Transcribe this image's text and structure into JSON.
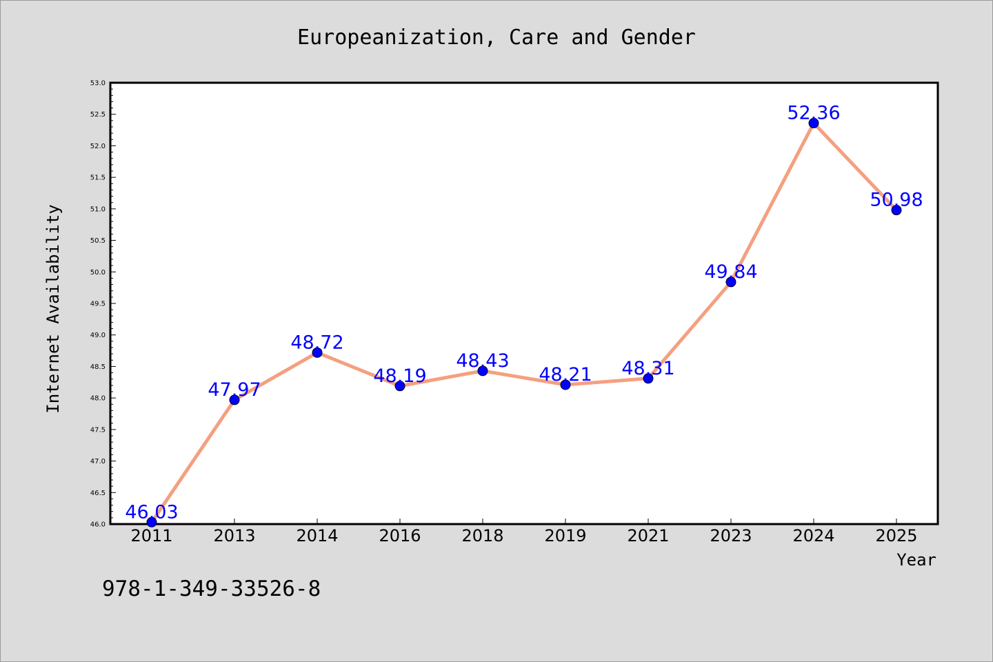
{
  "title": "Europeanization, Care and Gender",
  "footer": "978-1-349-33526-8",
  "colors": {
    "background": "#dcdcdc",
    "plot_background": "#ffffff",
    "line": "#f4a080",
    "marker": "#0000ff",
    "data_label": "#0000ff"
  },
  "chart_data": {
    "type": "line",
    "title": "Europeanization, Care and Gender",
    "xlabel": "Year",
    "ylabel": "Internet Availability",
    "categories": [
      "2011",
      "2013",
      "2014",
      "2016",
      "2018",
      "2019",
      "2021",
      "2023",
      "2024",
      "2025"
    ],
    "series": [
      {
        "values": [
          46.03,
          47.97,
          48.72,
          48.19,
          48.43,
          48.21,
          48.31,
          49.84,
          52.36,
          50.98
        ]
      }
    ],
    "data_labels": [
      "46.03",
      "47.97",
      "48.72",
      "48.19",
      "48.43",
      "48.21",
      "48.31",
      "49.84",
      "52.36",
      "50.98"
    ],
    "ylim": [
      46.0,
      53.0
    ],
    "yticks": [
      "46.0",
      "46.5",
      "47.0",
      "47.5",
      "48.0",
      "48.5",
      "49.0",
      "49.5",
      "50.0",
      "50.5",
      "51.0",
      "51.5",
      "52.0",
      "52.5",
      "53.0"
    ],
    "grid": false,
    "legend": "none",
    "marker": "circle"
  }
}
